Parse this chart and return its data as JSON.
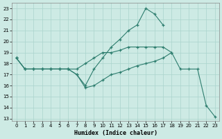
{
  "xlabel": "Humidex (Indice chaleur)",
  "xlim": [
    -0.5,
    23.5
  ],
  "ylim": [
    12.8,
    23.5
  ],
  "xticks": [
    0,
    1,
    2,
    3,
    4,
    5,
    6,
    7,
    8,
    9,
    10,
    11,
    12,
    13,
    14,
    15,
    16,
    17,
    18,
    19,
    20,
    21,
    22,
    23
  ],
  "yticks": [
    13,
    14,
    15,
    16,
    17,
    18,
    19,
    20,
    21,
    22,
    23
  ],
  "bg_color": "#cdeae4",
  "line_color": "#2d7d6e",
  "line1_x": [
    0,
    1,
    2,
    3,
    4,
    5,
    6,
    7,
    8,
    9,
    10,
    11,
    12,
    13,
    14,
    15,
    16,
    17,
    18
  ],
  "line1_y": [
    18.5,
    17.5,
    17.5,
    17.5,
    17.5,
    17.5,
    17.5,
    17.5,
    18.0,
    18.5,
    19.0,
    19.0,
    19.2,
    19.5,
    19.5,
    19.5,
    19.5,
    19.5,
    19.0
  ],
  "line2_x": [
    0,
    1,
    2,
    3,
    4,
    5,
    6,
    7,
    8,
    9,
    10,
    11,
    12,
    13,
    14,
    15,
    16,
    17
  ],
  "line2_y": [
    18.5,
    17.5,
    17.5,
    17.5,
    17.5,
    17.5,
    17.5,
    17.0,
    16.0,
    17.5,
    18.5,
    19.5,
    20.2,
    21.0,
    21.5,
    23.0,
    22.5,
    21.5
  ],
  "line3_x": [
    0,
    1,
    2,
    3,
    4,
    5,
    6,
    7,
    8,
    9,
    10,
    11,
    12,
    13,
    14,
    15,
    16,
    17,
    18,
    19,
    20,
    21,
    22,
    23
  ],
  "line3_y": [
    18.5,
    17.5,
    17.5,
    17.5,
    17.5,
    17.5,
    17.5,
    17.0,
    15.8,
    16.0,
    16.5,
    17.0,
    17.2,
    17.5,
    17.8,
    18.0,
    18.2,
    18.5,
    19.0,
    17.5,
    17.5,
    17.5,
    14.2,
    13.2
  ]
}
